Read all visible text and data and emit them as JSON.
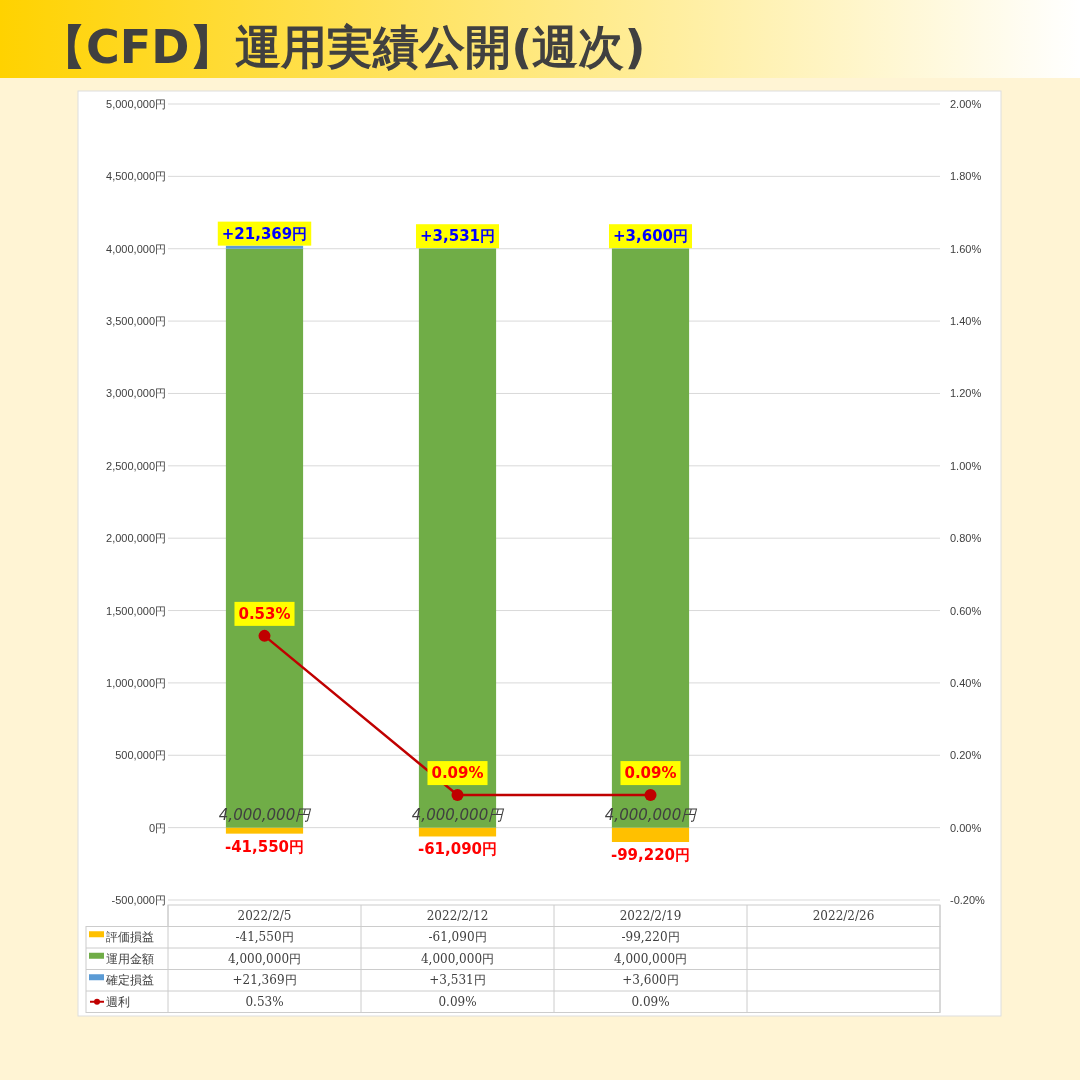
{
  "chart_data": {
    "type": "bar",
    "title": "【CFD】運用実績公開(週次)",
    "categories": [
      "2022/2/5",
      "2022/2/12",
      "2022/2/19",
      "2022/2/26"
    ],
    "stacked": true,
    "series": [
      {
        "name": "評価損益",
        "color": "#ffc000",
        "values": [
          -41550,
          -61090,
          -99220,
          null
        ],
        "value_labels": [
          "-41,550円",
          "-61,090円",
          "-99,220円",
          null
        ]
      },
      {
        "name": "運用金額",
        "color": "#70ad47",
        "values": [
          4000000,
          4000000,
          4000000,
          null
        ],
        "value_labels": [
          "4,000,000円",
          "4,000,000円",
          "4,000,000円",
          null
        ]
      },
      {
        "name": "確定損益",
        "color": "#5b9bd5",
        "values": [
          21369,
          3531,
          3600,
          null
        ],
        "value_labels": [
          "+21,369円",
          "+3,531円",
          "+3,600円",
          null
        ]
      },
      {
        "name": "週利",
        "type": "line",
        "axis": "y2",
        "color": "#c00000",
        "marker": "circle",
        "values": [
          0.53,
          0.09,
          0.09,
          null
        ],
        "value_labels": [
          "0.53%",
          "0.09%",
          "0.09%",
          null
        ]
      }
    ],
    "ylim": [
      -500000,
      5000000
    ],
    "yticks": [
      {
        "value": -500000,
        "label": "-500,000円"
      },
      {
        "value": 0,
        "label": "0円"
      },
      {
        "value": 500000,
        "label": "500,000円"
      },
      {
        "value": 1000000,
        "label": "1,000,000円"
      },
      {
        "value": 1500000,
        "label": "1,500,000円"
      },
      {
        "value": 2000000,
        "label": "2,000,000円"
      },
      {
        "value": 2500000,
        "label": "2,500,000円"
      },
      {
        "value": 3000000,
        "label": "3,000,000円"
      },
      {
        "value": 3500000,
        "label": "3,500,000円"
      },
      {
        "value": 4000000,
        "label": "4,000,000円"
      },
      {
        "value": 4500000,
        "label": "4,500,000円"
      },
      {
        "value": 5000000,
        "label": "5,000,000円"
      }
    ],
    "y2lim": [
      -0.2,
      2
    ],
    "y2ticks": [
      {
        "value": -0.2,
        "label": "-0.20%"
      },
      {
        "value": 0,
        "label": "0.00%"
      },
      {
        "value": 0.2,
        "label": "0.20%"
      },
      {
        "value": 0.4,
        "label": "0.40%"
      },
      {
        "value": 0.6,
        "label": "0.60%"
      },
      {
        "value": 0.8,
        "label": "0.80%"
      },
      {
        "value": 1,
        "label": "1.00%"
      },
      {
        "value": 1.2,
        "label": "1.20%"
      },
      {
        "value": 1.4,
        "label": "1.40%"
      },
      {
        "value": 1.6,
        "label": "1.60%"
      },
      {
        "value": 1.8,
        "label": "1.80%"
      },
      {
        "value": 2,
        "label": "2.00%"
      }
    ],
    "grid": "y",
    "legend": "bottom"
  }
}
